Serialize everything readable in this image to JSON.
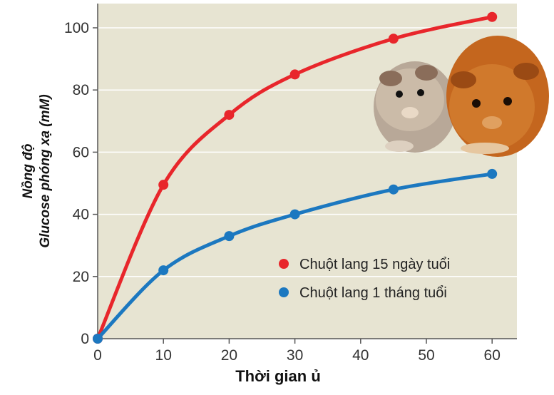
{
  "chart_data": {
    "type": "line",
    "xlabel": "Thời gian ủ",
    "ylabel_line1": "Nồng độ",
    "ylabel_line2": "Glucose phóng xạ (mM)",
    "x_ticks": [
      "0",
      "10",
      "20",
      "30",
      "40",
      "50",
      "60"
    ],
    "y_ticks": [
      "0",
      "20",
      "40",
      "60",
      "80",
      "100"
    ],
    "xlim": [
      0,
      64
    ],
    "ylim": [
      0,
      105
    ],
    "grid": true,
    "legend_position": "bottom-right",
    "series": [
      {
        "name": "Chuột lang 15 ngày tuổi",
        "color": "#e8262b",
        "points": [
          [
            0,
            0
          ],
          [
            10,
            49.5
          ],
          [
            20,
            72
          ],
          [
            30,
            85
          ],
          [
            45,
            96.5
          ],
          [
            60,
            103.5
          ]
        ]
      },
      {
        "name": "Chuột lang 1 tháng tuổi",
        "color": "#1c78c0",
        "points": [
          [
            0,
            0
          ],
          [
            10,
            22
          ],
          [
            20,
            33
          ],
          [
            30,
            40
          ],
          [
            45,
            48
          ],
          [
            60,
            53
          ]
        ]
      }
    ]
  },
  "photo": {
    "icon": "guinea-pig-photo"
  }
}
